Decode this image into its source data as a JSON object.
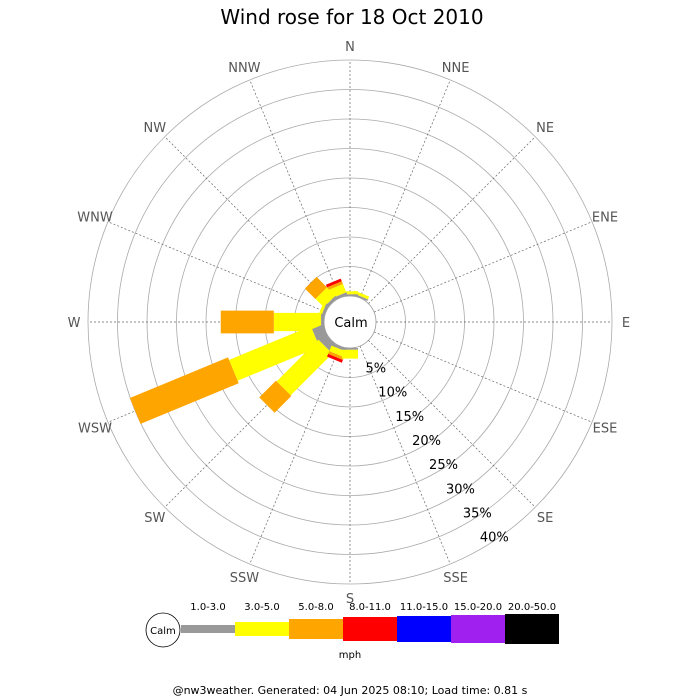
{
  "chart_data": {
    "type": "wind-rose",
    "title": "Wind rose for 18 Oct 2010",
    "directions": [
      "N",
      "NNE",
      "NE",
      "ENE",
      "E",
      "ESE",
      "SE",
      "SSE",
      "S",
      "SSW",
      "SW",
      "WSW",
      "W",
      "WNW",
      "NW",
      "NNW"
    ],
    "radial_ticks": [
      "5%",
      "10%",
      "15%",
      "20%",
      "25%",
      "30%",
      "35%",
      "40%"
    ],
    "radial_max": 40,
    "calm_label": "Calm",
    "unit": "mph",
    "speed_bins": [
      {
        "label": "1.0-3.0",
        "color": "#999999"
      },
      {
        "label": "3.0-5.0",
        "color": "#ffff00"
      },
      {
        "label": "5.0-8.0",
        "color": "#ffa500"
      },
      {
        "label": "8.0-11.0",
        "color": "#ff0000"
      },
      {
        "label": "11.0-15.0",
        "color": "#0000ff"
      },
      {
        "label": "15.0-20.0",
        "color": "#a020f0"
      },
      {
        "label": "20.0-50.0",
        "color": "#000000"
      }
    ],
    "series": [
      {
        "direction": "NNE",
        "segments": [
          0.3,
          0.5,
          0,
          0,
          0,
          0,
          0
        ]
      },
      {
        "direction": "N",
        "segments": [
          0.3,
          0.5,
          0,
          0,
          0,
          0,
          0
        ]
      },
      {
        "direction": "NNW",
        "segments": [
          0.5,
          1.5,
          0.5,
          0.5,
          0,
          0,
          0
        ]
      },
      {
        "direction": "NW",
        "segments": [
          0.5,
          2.0,
          2.5,
          0,
          0,
          0,
          0
        ]
      },
      {
        "direction": "WNW",
        "segments": [
          0.5,
          0.5,
          0,
          0,
          0,
          0,
          0
        ]
      },
      {
        "direction": "W",
        "segments": [
          0.5,
          8.0,
          9.0,
          0,
          0,
          0,
          0
        ]
      },
      {
        "direction": "WSW",
        "segments": [
          2.0,
          15.0,
          18.0,
          0,
          0,
          0,
          0
        ]
      },
      {
        "direction": "SW",
        "segments": [
          1.5,
          10.0,
          4.0,
          0,
          0,
          0,
          0
        ]
      },
      {
        "direction": "SSW",
        "segments": [
          0.5,
          1.0,
          0.5,
          0.5,
          0,
          0,
          0
        ]
      },
      {
        "direction": "S",
        "segments": [
          0.3,
          1.5,
          0,
          0,
          0,
          0,
          0
        ]
      }
    ]
  },
  "footer": "@nw3weather. Generated: 04 Jun 2025 08:10; Load time: 0.81 s"
}
